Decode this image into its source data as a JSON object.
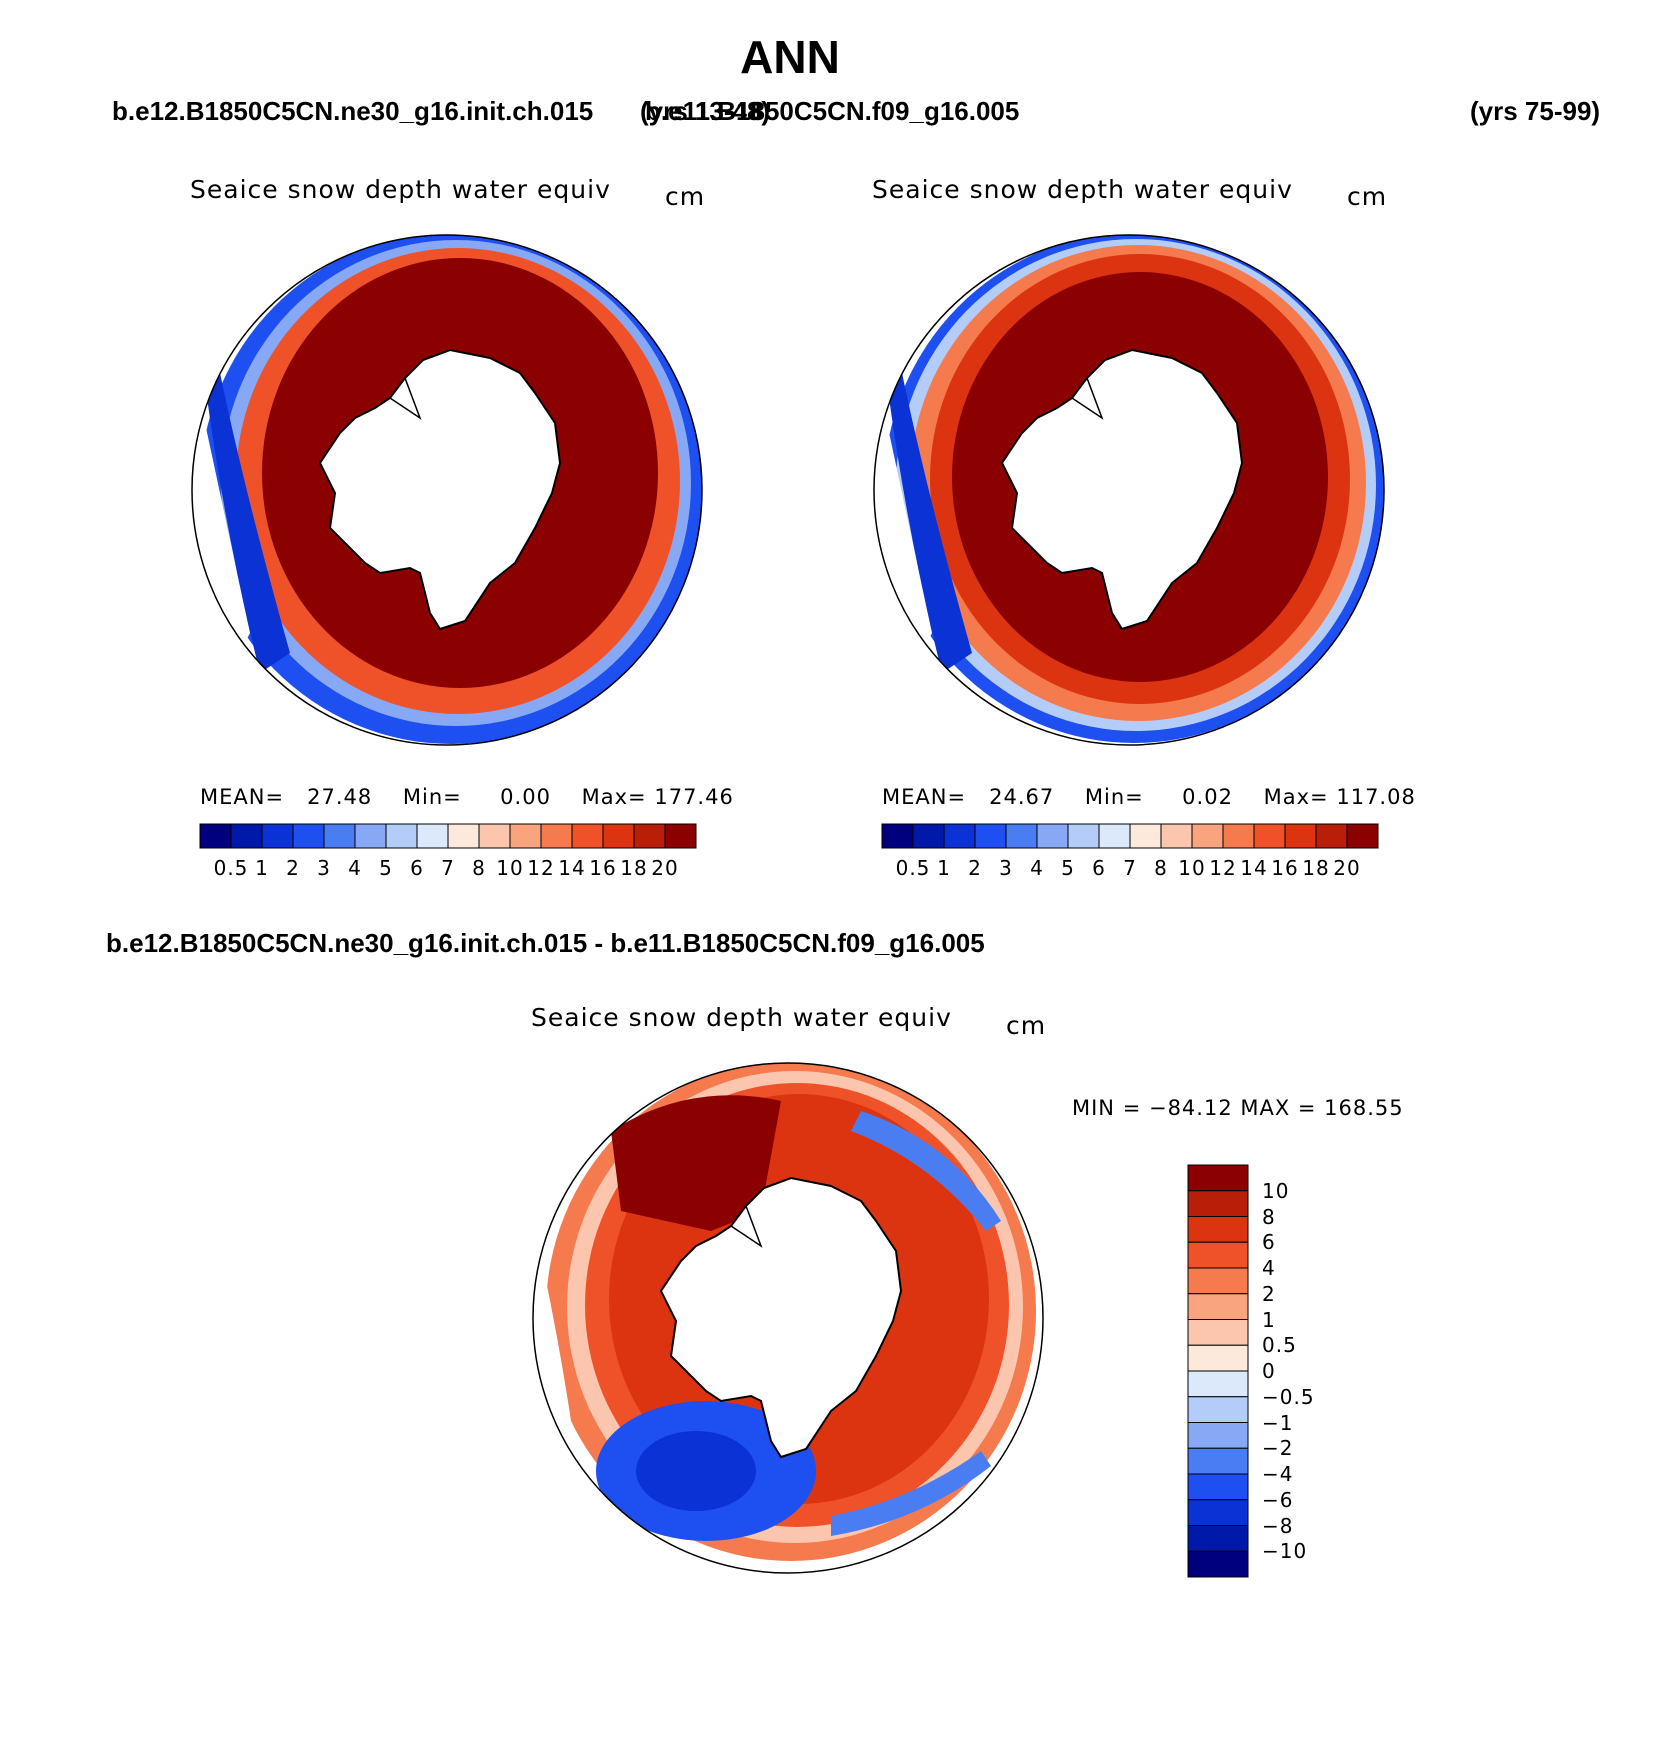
{
  "title": "ANN",
  "header": {
    "case1": "b.e12.B1850C5CN.ne30_g16.init.ch.015",
    "case1_years": "(yrs 13-48)",
    "case2": "b.e11.B1850C5CN.f09_g16.005",
    "case2_years": "(yrs 75-99)"
  },
  "panels": [
    {
      "variable": "Seaice snow depth water equiv",
      "units": "cm",
      "stats": {
        "mean_label": "MEAN=",
        "mean": "27.48",
        "min_label": "Min=",
        "min": "0.00",
        "max_label": "Max=",
        "max": "177.46"
      }
    },
    {
      "variable": "Seaice snow depth water equiv",
      "units": "cm",
      "stats": {
        "mean_label": "MEAN=",
        "mean": "24.67",
        "min_label": "Min=",
        "min": "0.02",
        "max_label": "Max=",
        "max": "117.08"
      }
    }
  ],
  "difference": {
    "title": "b.e12.B1850C5CN.ne30_g16.init.ch.015 - b.e11.B1850C5CN.f09_g16.005",
    "variable": "Seaice snow depth water equiv",
    "units": "cm",
    "minmax": "MIN = −84.12 MAX = 168.55"
  },
  "legend_abs": {
    "labels": [
      "0.5",
      "1",
      "2",
      "3",
      "4",
      "5",
      "6",
      "7",
      "8",
      "10",
      "12",
      "14",
      "16",
      "18",
      "20"
    ],
    "colors": [
      "#00007f",
      "#0019a8",
      "#0a32d4",
      "#1e4ff0",
      "#4a7cf2",
      "#86a8f5",
      "#b4ccf8",
      "#dce9fb",
      "#fde8dc",
      "#fcc6ae",
      "#f9a37f",
      "#f57a4e",
      "#ef5228",
      "#dc3410",
      "#b81e08",
      "#8b0000"
    ]
  },
  "legend_diff": {
    "labels": [
      "10",
      "8",
      "6",
      "4",
      "2",
      "1",
      "0.5",
      "0",
      "−0.5",
      "−1",
      "−2",
      "−4",
      "−6",
      "−8",
      "−10"
    ],
    "colors": [
      "#8b0000",
      "#b81e08",
      "#dc3410",
      "#ef5228",
      "#f57a4e",
      "#f9a37f",
      "#fcc6ae",
      "#fde8dc",
      "#dce9fb",
      "#b4ccf8",
      "#86a8f5",
      "#4a7cf2",
      "#1e4ff0",
      "#0a32d4",
      "#0019a8",
      "#00007f"
    ]
  }
}
